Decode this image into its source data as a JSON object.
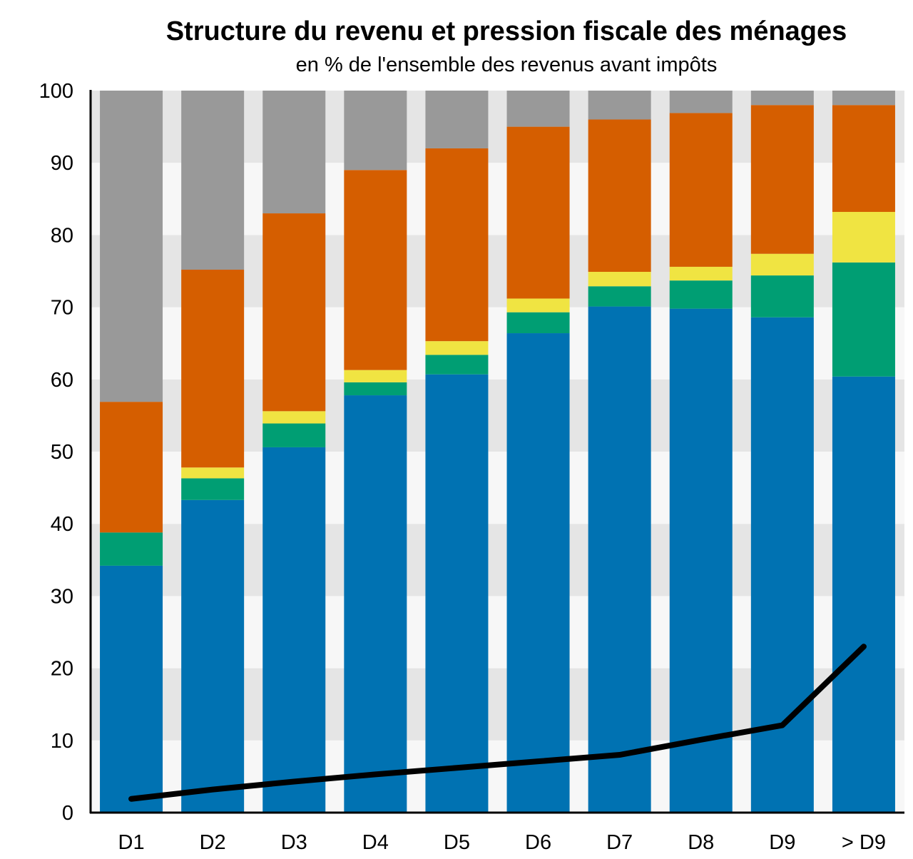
{
  "chart_data": {
    "type": "bar",
    "stacked": true,
    "title": "Structure du revenu et pression fiscale des ménages",
    "subtitle": "en % de l'ensemble des revenus avant impôts",
    "xlabel": "",
    "ylabel": "",
    "ylim": [
      0,
      100
    ],
    "yticks": [
      0,
      10,
      20,
      30,
      40,
      50,
      60,
      70,
      80,
      90,
      100
    ],
    "categories": [
      "D1",
      "D2",
      "D3",
      "D4",
      "D5",
      "D6",
      "D7",
      "D8",
      "D9",
      "> D9"
    ],
    "series": [
      {
        "name": "blue",
        "color": "#0072B2",
        "values": [
          34.2,
          43.3,
          50.6,
          57.8,
          60.7,
          66.4,
          70.1,
          69.8,
          68.6,
          60.4
        ]
      },
      {
        "name": "green",
        "color": "#009E73",
        "values": [
          4.6,
          3.0,
          3.3,
          1.8,
          2.7,
          2.9,
          2.8,
          3.9,
          5.8,
          15.8
        ]
      },
      {
        "name": "yellow",
        "color": "#F0E442",
        "values": [
          0.0,
          1.5,
          1.7,
          1.7,
          1.9,
          1.9,
          2.0,
          1.9,
          3.0,
          7.0
        ]
      },
      {
        "name": "orange",
        "color": "#D55E00",
        "values": [
          18.1,
          27.4,
          27.4,
          27.7,
          26.7,
          23.8,
          21.1,
          21.3,
          20.6,
          14.8
        ]
      },
      {
        "name": "grey",
        "color": "#999999",
        "values": [
          43.1,
          24.8,
          17.0,
          11.0,
          8.0,
          5.0,
          4.0,
          3.1,
          2.0,
          2.0
        ]
      }
    ],
    "line": {
      "name": "pression fiscale",
      "color": "#000000",
      "values": [
        1.9,
        3.2,
        4.3,
        5.3,
        6.2,
        7.1,
        8.0,
        10.1,
        12.1,
        23.0
      ]
    },
    "background_band_colors": [
      "#F7F7F7",
      "#E5E5E5"
    ],
    "grid": false,
    "legend": "none"
  }
}
